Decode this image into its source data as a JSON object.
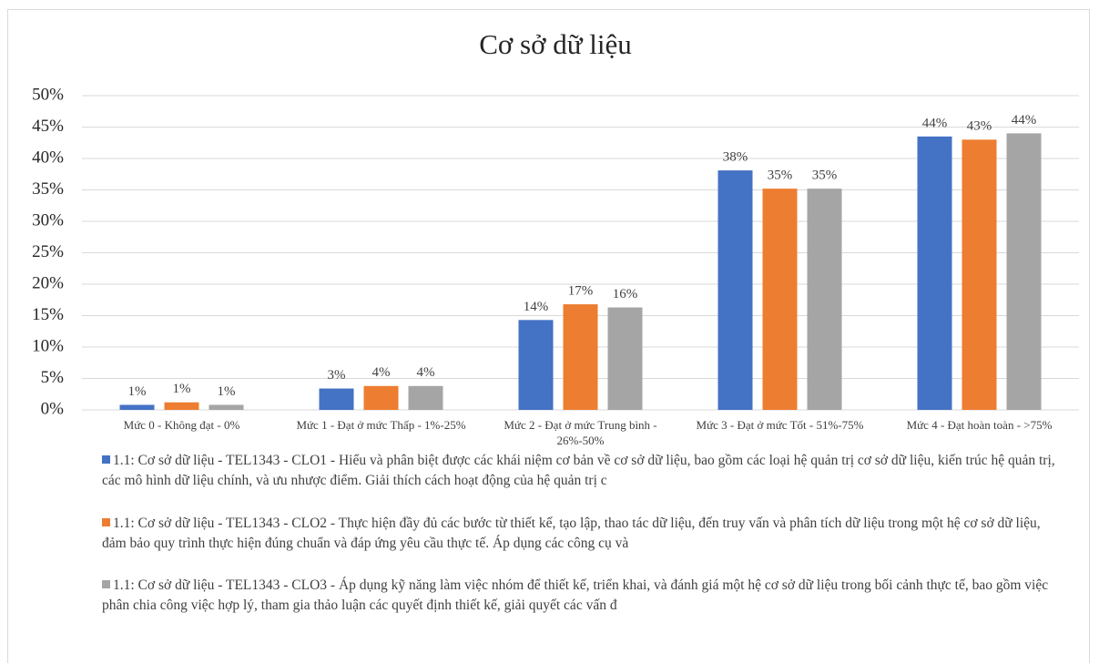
{
  "chart_data": {
    "type": "bar",
    "title": "Cơ sở dữ liệu",
    "categories": [
      "Mức 0 - Không đạt - 0%",
      "Mức 1 - Đạt ở mức Thấp - 1%-25%",
      "Mức 2 - Đạt ở mức Trung bình - 26%-50%",
      "Mức 3 - Đạt ở mức Tốt - 51%-75%",
      "Mức 4 - Đạt hoàn toàn - >75%"
    ],
    "series": [
      {
        "name": "1.1: Cơ sở dữ liệu - TEL1343 - CLO1 - Hiểu và phân biệt được các khái niệm cơ bản về cơ sở dữ liệu, bao gồm các loại hệ quản trị cơ sở dữ liệu, kiến trúc hệ quản trị, các mô hình dữ liệu chính, và ưu nhược điểm. Giải thích cách hoạt động của hệ quản trị c",
        "color": "#4472c4",
        "values": [
          0.8,
          3.4,
          14.3,
          38.1,
          43.5
        ],
        "value_labels": [
          "1%",
          "3%",
          "14%",
          "38%",
          "44%"
        ]
      },
      {
        "name": "1.1: Cơ sở dữ liệu - TEL1343 - CLO2 - Thực hiện đầy đủ các bước từ thiết kế, tạo lập, thao tác dữ liệu, đến truy vấn và phân tích dữ liệu trong một hệ cơ sở dữ liệu, đảm bảo quy trình thực hiện đúng chuẩn và đáp ứng yêu cầu thực tế. Áp dụng các công cụ và",
        "color": "#ed7d31",
        "values": [
          1.2,
          3.8,
          16.8,
          35.2,
          43.0
        ],
        "value_labels": [
          "1%",
          "4%",
          "17%",
          "35%",
          "43%"
        ]
      },
      {
        "name": "1.1: Cơ sở dữ liệu - TEL1343 - CLO3 - Áp dụng kỹ năng làm việc nhóm để thiết kế, triển khai, và đánh giá một hệ cơ sở dữ liệu trong bối cảnh thực tế, bao gồm việc phân chia công việc hợp lý, tham gia thảo luận các quyết định thiết kế, giải quyết các vấn đ",
        "color": "#a5a5a5",
        "values": [
          0.8,
          3.8,
          16.3,
          35.2,
          44.0
        ],
        "value_labels": [
          "1%",
          "4%",
          "16%",
          "35%",
          "44%"
        ]
      }
    ],
    "ylim": [
      0,
      50
    ],
    "yticks": [
      {
        "value": 0,
        "label": "0%"
      },
      {
        "value": 5,
        "label": "5%"
      },
      {
        "value": 10,
        "label": "10%"
      },
      {
        "value": 15,
        "label": "15%"
      },
      {
        "value": 20,
        "label": "20%"
      },
      {
        "value": 25,
        "label": "25%"
      },
      {
        "value": 30,
        "label": "30%"
      },
      {
        "value": 35,
        "label": "35%"
      },
      {
        "value": 40,
        "label": "40%"
      },
      {
        "value": 45,
        "label": "45%"
      },
      {
        "value": 50,
        "label": "50%"
      }
    ],
    "grid": true,
    "legend": "bottom"
  }
}
